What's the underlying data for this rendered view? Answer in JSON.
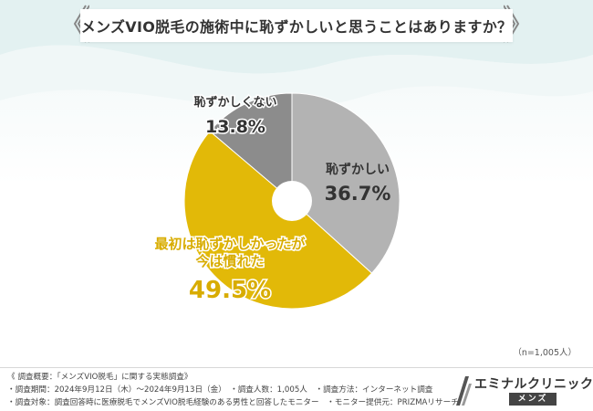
{
  "title": "メンズVIO脱毛の施術中に恥ずかしいと思うことはありますか？",
  "chart_data": {
    "type": "pie",
    "title": "メンズVIO脱毛の施術中に恥ずかしいと思うことはありますか？",
    "slices": [
      {
        "label": "恥ずかしい",
        "value": 36.7,
        "display": "36.7%",
        "color": "#b3b3b3"
      },
      {
        "label_lines": [
          "最初は恥ずかしかったが",
          "今は慣れた"
        ],
        "value": 49.5,
        "display": "49.5%",
        "color": "#e2b908"
      },
      {
        "label": "恥ずかしくない",
        "value": 13.8,
        "display": "13.8%",
        "color": "#8c8c8c"
      }
    ],
    "sample_note": "（n=1,005人）",
    "legend": "none"
  },
  "footer": {
    "lines": [
      "《 調査概要：「メンズVIO脱毛」に関する実態調査》",
      "・調査期間：2024年9月12日（木）～2024年9月13日（金）　・調査人数：1,005人　・調査方法：インターネット調査",
      "・調査対象：調査回答時に医療脱毛でメンズVIO脱毛経験のある男性と回答したモニター　・モニター提供元：PRIZMAリサーチ"
    ]
  },
  "logo": {
    "name": "エミナルクリニック",
    "badge": "メンズ"
  },
  "colors": {
    "gold": "#e2b908",
    "light_gray": "#b3b3b3",
    "dark_gray": "#8c8c8c"
  }
}
